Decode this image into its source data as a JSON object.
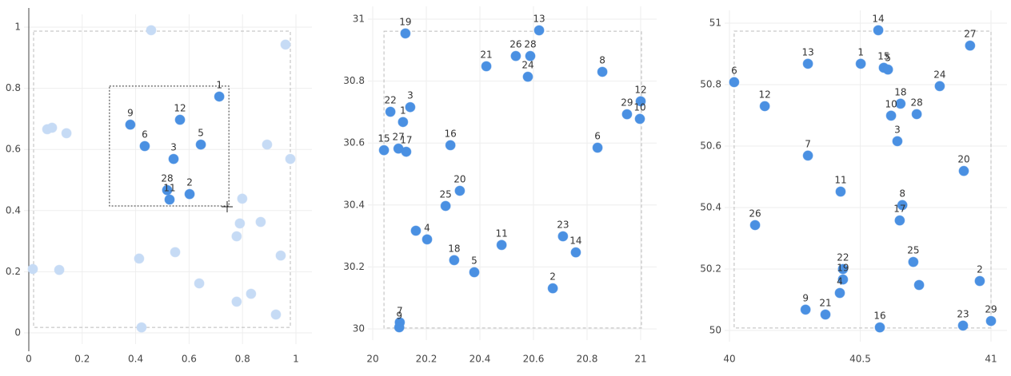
{
  "chart_data": [
    {
      "type": "scatter",
      "xlim": [
        0,
        1
      ],
      "ylim": [
        0,
        1
      ],
      "xticks": [
        0,
        0.2,
        0.4,
        0.6,
        0.8,
        1
      ],
      "yticks": [
        0,
        0.2,
        0.4,
        0.6,
        0.8,
        1
      ],
      "grid": true,
      "axis_line": true,
      "range_box": {
        "x": [
          0.018,
          0.979
        ],
        "y": [
          0.018,
          0.987
        ]
      },
      "selection": {
        "x": [
          0.302,
          0.749
        ],
        "y": [
          0.415,
          0.807
        ]
      },
      "series": [
        {
          "color": "#c6dbf5",
          "x": [
            0.458,
            0.961,
            0.069,
            0.087,
            0.141,
            0.892,
            0.979,
            0.799,
            0.79,
            0.868,
            0.778,
            0.015,
            0.114,
            0.413,
            0.548,
            0.943,
            0.638,
            0.832,
            0.778,
            0.925,
            0.422
          ],
          "y": [
            0.99,
            0.943,
            0.666,
            0.671,
            0.653,
            0.616,
            0.569,
            0.439,
            0.358,
            0.363,
            0.316,
            0.209,
            0.206,
            0.243,
            0.264,
            0.253,
            0.162,
            0.128,
            0.102,
            0.06,
            0.018
          ]
        },
        {
          "color": "#4a90e2",
          "x": [
            0.713,
            0.38,
            0.566,
            0.434,
            0.644,
            0.542,
            0.518,
            0.527,
            0.602
          ],
          "y": [
            0.773,
            0.681,
            0.697,
            0.611,
            0.616,
            0.569,
            0.467,
            0.436,
            0.454
          ],
          "labels": [
            "1",
            "9",
            "12",
            "6",
            "5",
            "3",
            "28",
            "11",
            "2"
          ]
        }
      ]
    },
    {
      "type": "scatter",
      "xlim": [
        20,
        21
      ],
      "ylim": [
        30,
        31
      ],
      "xticks": [
        20,
        20.2,
        20.4,
        20.6,
        20.8,
        21
      ],
      "yticks": [
        30,
        30.2,
        30.4,
        30.6,
        30.8,
        31
      ],
      "grid": true,
      "range_box": {
        "x": [
          20.042,
          21.003
        ],
        "y": [
          30.003,
          30.961
        ]
      },
      "series": [
        {
          "color": "#4a90e2",
          "x": [
            20.122,
            20.621,
            20.534,
            20.588,
            20.424,
            20.579,
            20.857,
            20.066,
            20.14,
            20.113,
            21.0,
            20.949,
            20.997,
            20.042,
            20.096,
            20.125,
            20.29,
            20.839,
            20.325,
            20.272,
            20.161,
            20.203,
            20.304,
            20.379,
            20.481,
            20.71,
            20.758,
            20.672,
            20.101,
            20.099
          ],
          "y": [
            30.954,
            30.964,
            30.881,
            30.881,
            30.848,
            30.814,
            30.83,
            30.701,
            30.716,
            30.668,
            30.735,
            30.693,
            30.678,
            30.577,
            30.582,
            30.572,
            30.593,
            30.585,
            30.446,
            30.397,
            30.317,
            30.289,
            30.222,
            30.183,
            30.271,
            30.299,
            30.247,
            30.131,
            30.021,
            30.005
          ],
          "labels": [
            "19",
            "13",
            "26",
            "28",
            "21",
            "24",
            "8",
            "22",
            "3",
            "1",
            "12",
            "29",
            "10",
            "15",
            "27",
            "17",
            "16",
            "6",
            "20",
            "25",
            null,
            "4",
            "18",
            "5",
            "11",
            "23",
            "14",
            "2",
            "7",
            "9"
          ]
        }
      ]
    },
    {
      "type": "scatter",
      "xlim": [
        40,
        41
      ],
      "ylim": [
        50,
        51
      ],
      "xticks": [
        40,
        40.5,
        41
      ],
      "yticks": [
        50,
        50.2,
        50.4,
        50.6,
        50.8,
        51
      ],
      "grid": true,
      "range_box": {
        "x": [
          40.018,
          41.0
        ],
        "y": [
          50.008,
          50.974
        ]
      },
      "series": [
        {
          "color": "#4a90e2",
          "x": [
            40.569,
            40.92,
            40.018,
            40.3,
            40.502,
            40.59,
            40.606,
            40.804,
            40.135,
            40.654,
            40.618,
            40.716,
            40.642,
            40.3,
            40.896,
            40.425,
            40.661,
            40.651,
            40.098,
            40.703,
            40.434,
            40.434,
            40.422,
            40.725,
            40.957,
            40.291,
            40.367,
            40.575,
            40.893,
            41.0
          ],
          "y": [
            50.977,
            50.927,
            50.808,
            50.868,
            50.868,
            50.855,
            50.849,
            50.795,
            50.73,
            50.738,
            50.699,
            50.704,
            50.616,
            50.569,
            50.519,
            50.452,
            50.408,
            50.358,
            50.343,
            50.223,
            50.2,
            50.166,
            50.122,
            50.148,
            50.161,
            50.068,
            50.052,
            50.01,
            50.016,
            50.031
          ],
          "labels": [
            "14",
            "27",
            "6",
            "13",
            "1",
            "15",
            "5",
            "24",
            "12",
            "18",
            "10",
            "28",
            "3",
            "7",
            "20",
            "11",
            "8",
            "17",
            "26",
            "25",
            "22",
            "19",
            "4",
            null,
            "2",
            "9",
            "21",
            "16",
            "23",
            "29"
          ]
        }
      ]
    }
  ]
}
